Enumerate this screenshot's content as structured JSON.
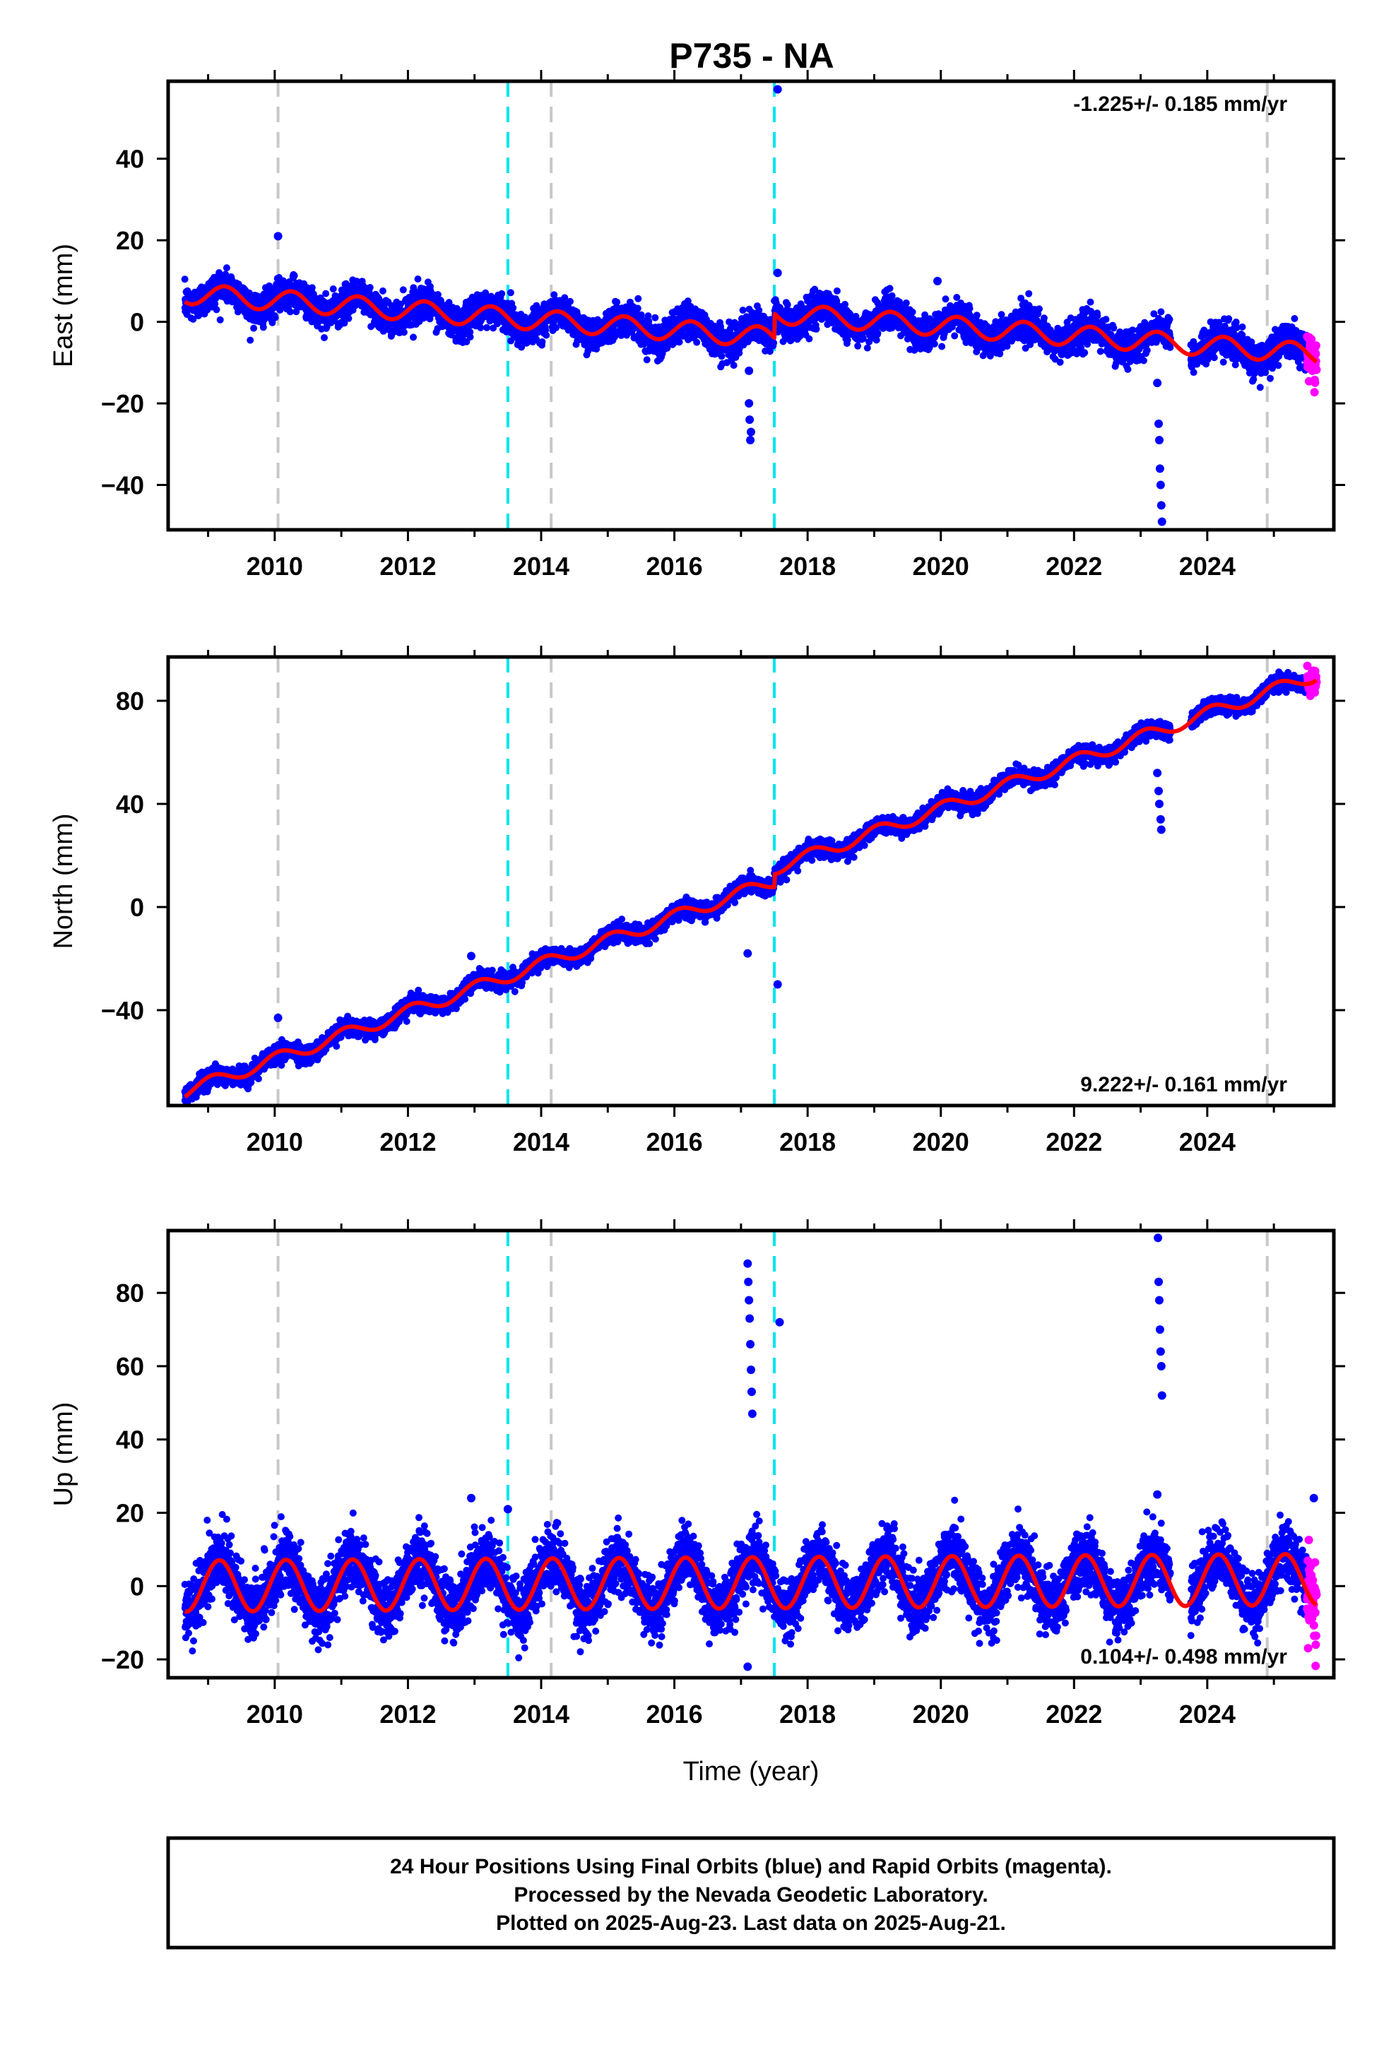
{
  "title": "P735 - NA",
  "footer": {
    "lines": [
      "24 Hour Positions Using Final Orbits (blue) and Rapid Orbits (magenta).",
      "Processed by the Nevada Geodetic Laboratory.",
      "Plotted on 2025-Aug-23. Last data on 2025-Aug-21."
    ]
  },
  "colors": {
    "final_orbits": "#0000ff",
    "rapid_orbits": "#ff00ff",
    "model_fit": "#ff0000",
    "equipment_change": "#c8c8c8",
    "earthquake": "#00e5ee"
  },
  "chart_data": [
    {
      "type": "scatter",
      "ylabel": "East (mm)",
      "xlabel": "",
      "xlim": [
        2008.4,
        2025.9
      ],
      "ylim": [
        -51,
        59
      ],
      "yticks": [
        -40,
        -20,
        0,
        20,
        40
      ],
      "xticks": [
        2010,
        2012,
        2014,
        2016,
        2018,
        2020,
        2022,
        2024
      ],
      "rate_text": "-1.225+/- 0.185 mm/yr",
      "rate_position": "top-right",
      "rate": -1.225,
      "intercept_2008": 7,
      "seasonal_amp": 2.5,
      "seasonal_phase": 0.0,
      "scatter_sd": 2.0,
      "offsets": [
        {
          "x": 2017.5,
          "dy": 6
        }
      ],
      "equipment_lines": [
        2010.05,
        2014.15,
        2024.9
      ],
      "earthquake_lines": [
        2013.5,
        2017.5
      ],
      "outliers": [
        {
          "x": 2010.05,
          "y": 21
        },
        {
          "x": 2017.12,
          "y": -12
        },
        {
          "x": 2017.12,
          "y": -20
        },
        {
          "x": 2017.13,
          "y": -24
        },
        {
          "x": 2017.14,
          "y": -29
        },
        {
          "x": 2017.15,
          "y": -27
        },
        {
          "x": 2017.55,
          "y": 57
        },
        {
          "x": 2017.55,
          "y": 12
        },
        {
          "x": 2019.95,
          "y": 10
        },
        {
          "x": 2023.25,
          "y": -15
        },
        {
          "x": 2023.27,
          "y": -25
        },
        {
          "x": 2023.28,
          "y": -29
        },
        {
          "x": 2023.29,
          "y": -36
        },
        {
          "x": 2023.3,
          "y": -40
        },
        {
          "x": 2023.31,
          "y": -45
        },
        {
          "x": 2023.32,
          "y": -49
        }
      ],
      "rapid_range": [
        2025.5,
        2025.64
      ],
      "rapid_extra_sd": 3.0
    },
    {
      "type": "scatter",
      "ylabel": "North (mm)",
      "xlabel": "",
      "xlim": [
        2008.4,
        2025.9
      ],
      "ylim": [
        -77,
        97
      ],
      "yticks": [
        -40,
        0,
        40,
        80
      ],
      "xticks": [
        2010,
        2012,
        2014,
        2016,
        2018,
        2020,
        2022,
        2024
      ],
      "rate_text": "9.222+/- 0.161 mm/yr",
      "rate_position": "bottom-right",
      "rate": 9.222,
      "intercept_2008": -72,
      "seasonal_amp": 2.5,
      "seasonal_phase": 1.2,
      "scatter_sd": 1.6,
      "offsets": [
        {
          "x": 2017.5,
          "dy": 5
        }
      ],
      "equipment_lines": [
        2010.05,
        2014.15,
        2024.9
      ],
      "earthquake_lines": [
        2013.5,
        2017.5
      ],
      "outliers": [
        {
          "x": 2010.05,
          "y": -43
        },
        {
          "x": 2012.95,
          "y": -19
        },
        {
          "x": 2017.1,
          "y": -18
        },
        {
          "x": 2017.55,
          "y": -30
        },
        {
          "x": 2023.25,
          "y": 52
        },
        {
          "x": 2023.27,
          "y": 45
        },
        {
          "x": 2023.28,
          "y": 40
        },
        {
          "x": 2023.3,
          "y": 34
        },
        {
          "x": 2023.31,
          "y": 30
        }
      ],
      "rapid_range": [
        2025.5,
        2025.64
      ],
      "rapid_extra_sd": 2.5
    },
    {
      "type": "scatter",
      "ylabel": "Up (mm)",
      "xlabel": "Time (year)",
      "xlim": [
        2008.4,
        2025.9
      ],
      "ylim": [
        -25,
        97
      ],
      "yticks": [
        -20,
        0,
        20,
        40,
        60,
        80
      ],
      "xticks": [
        2010,
        2012,
        2014,
        2016,
        2018,
        2020,
        2022,
        2024
      ],
      "rate_text": "0.104+/- 0.498 mm/yr",
      "rate_position": "bottom-right",
      "rate": 0.104,
      "intercept_2008": 0,
      "seasonal_amp": 7,
      "seasonal_phase": 0.5,
      "scatter_sd": 4.0,
      "offsets": [],
      "equipment_lines": [
        2010.05,
        2014.15,
        2024.9
      ],
      "earthquake_lines": [
        2013.5,
        2017.5
      ],
      "outliers": [
        {
          "x": 2017.1,
          "y": 88
        },
        {
          "x": 2017.11,
          "y": 83
        },
        {
          "x": 2017.12,
          "y": 78
        },
        {
          "x": 2017.13,
          "y": 73
        },
        {
          "x": 2017.14,
          "y": 66
        },
        {
          "x": 2017.15,
          "y": 59
        },
        {
          "x": 2017.16,
          "y": 53
        },
        {
          "x": 2017.17,
          "y": 47
        },
        {
          "x": 2017.58,
          "y": 72
        },
        {
          "x": 2013.5,
          "y": 21
        },
        {
          "x": 2012.95,
          "y": 24
        },
        {
          "x": 2023.26,
          "y": 95
        },
        {
          "x": 2023.27,
          "y": 83
        },
        {
          "x": 2023.28,
          "y": 78
        },
        {
          "x": 2023.29,
          "y": 70
        },
        {
          "x": 2023.3,
          "y": 64
        },
        {
          "x": 2023.31,
          "y": 60
        },
        {
          "x": 2023.32,
          "y": 52
        },
        {
          "x": 2023.25,
          "y": 25
        },
        {
          "x": 2017.1,
          "y": -22
        },
        {
          "x": 2025.6,
          "y": 24
        }
      ],
      "rapid_range": [
        2025.5,
        2025.64
      ],
      "rapid_extra_sd": 6.0
    }
  ]
}
